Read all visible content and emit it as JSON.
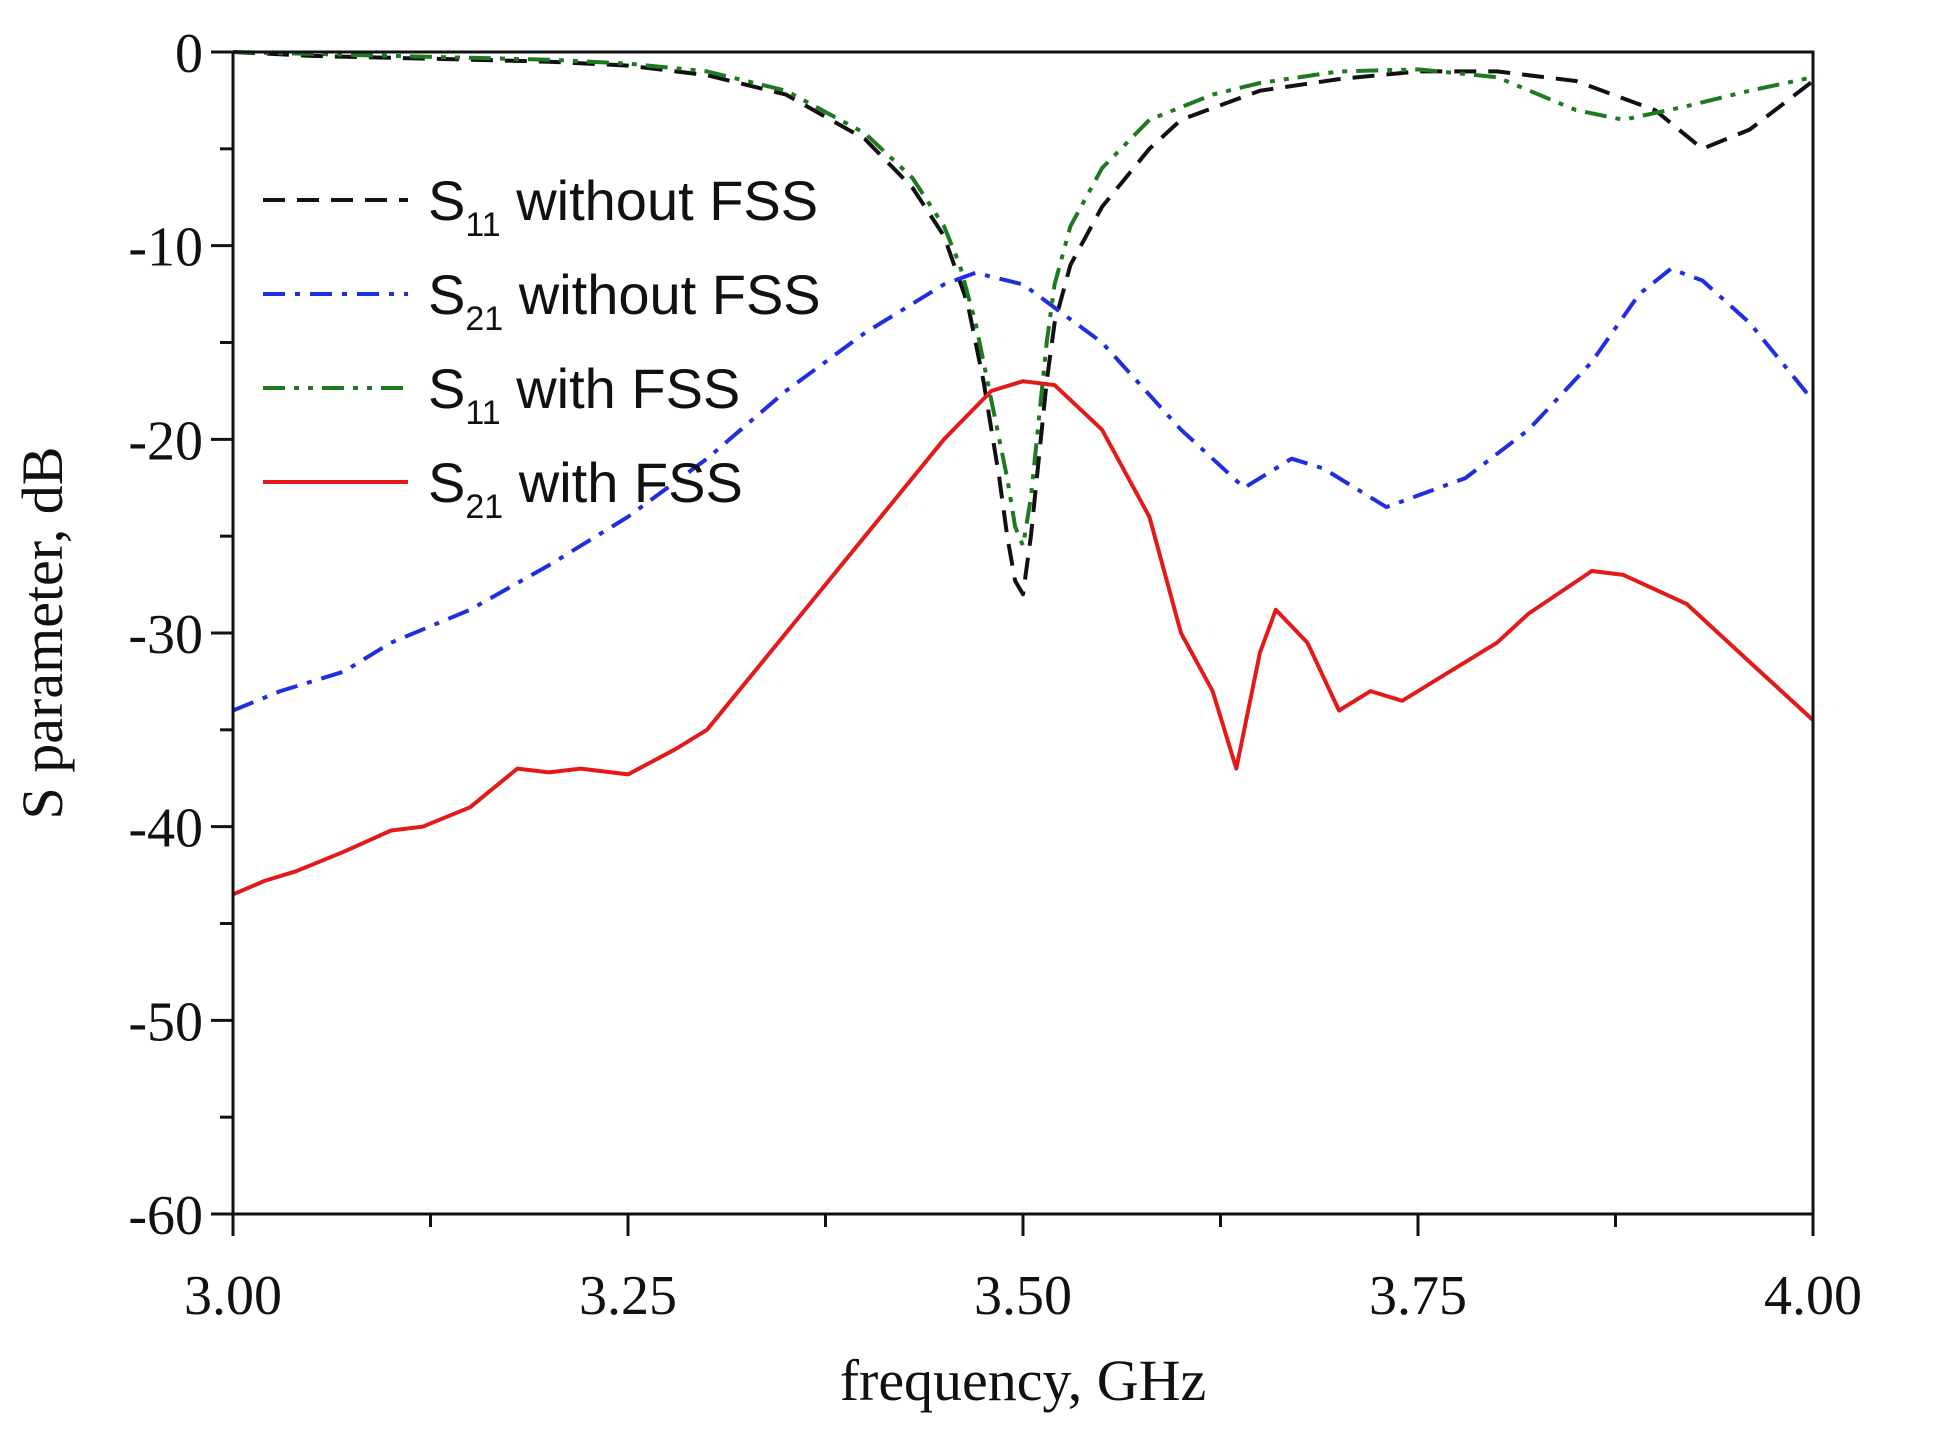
{
  "chart_data": {
    "type": "line",
    "title": "",
    "xlabel": "frequency, GHz",
    "ylabel": "S parameter, dB",
    "xlim": [
      3.0,
      4.0
    ],
    "ylim": [
      -60,
      0
    ],
    "x_ticks": [
      3.0,
      3.25,
      3.5,
      3.75,
      4.0
    ],
    "x_tick_labels": [
      "3.00",
      "3.25",
      "3.50",
      "3.75",
      "4.00"
    ],
    "y_ticks": [
      0,
      -10,
      -20,
      -30,
      -40,
      -50,
      -60
    ],
    "y_tick_labels": [
      "0",
      "-10",
      "-20",
      "-30",
      "-40",
      "-50",
      "-60"
    ],
    "grid": false,
    "legend_position": "upper-left",
    "series": [
      {
        "name": "S11 without FSS",
        "label_main": "S",
        "label_sub": "11",
        "label_rest": " without FSS",
        "color": "#111111",
        "style": "dash",
        "points": [
          [
            3.0,
            0
          ],
          [
            3.05,
            -0.2
          ],
          [
            3.1,
            -0.3
          ],
          [
            3.15,
            -0.4
          ],
          [
            3.2,
            -0.5
          ],
          [
            3.25,
            -0.7
          ],
          [
            3.3,
            -1.2
          ],
          [
            3.35,
            -2.2
          ],
          [
            3.4,
            -4.5
          ],
          [
            3.43,
            -7.0
          ],
          [
            3.45,
            -9.5
          ],
          [
            3.465,
            -13
          ],
          [
            3.475,
            -17
          ],
          [
            3.485,
            -22
          ],
          [
            3.49,
            -25
          ],
          [
            3.495,
            -27.3
          ],
          [
            3.5,
            -28
          ],
          [
            3.505,
            -25
          ],
          [
            3.51,
            -21
          ],
          [
            3.515,
            -17
          ],
          [
            3.52,
            -14
          ],
          [
            3.53,
            -11
          ],
          [
            3.55,
            -8
          ],
          [
            3.58,
            -5
          ],
          [
            3.6,
            -3.5
          ],
          [
            3.65,
            -2
          ],
          [
            3.7,
            -1.4
          ],
          [
            3.75,
            -1.0
          ],
          [
            3.8,
            -1.0
          ],
          [
            3.85,
            -1.5
          ],
          [
            3.9,
            -3.0
          ],
          [
            3.93,
            -5.0
          ],
          [
            3.96,
            -4.0
          ],
          [
            4.0,
            -1.5
          ]
        ]
      },
      {
        "name": "S21 without FSS",
        "label_main": "S",
        "label_sub": "21",
        "label_rest": " without FSS",
        "color": "#1f2fe0",
        "style": "dashdot",
        "points": [
          [
            3.0,
            -34
          ],
          [
            3.03,
            -33
          ],
          [
            3.07,
            -32
          ],
          [
            3.1,
            -30.5
          ],
          [
            3.15,
            -28.8
          ],
          [
            3.2,
            -26.5
          ],
          [
            3.25,
            -24
          ],
          [
            3.3,
            -21
          ],
          [
            3.35,
            -17.5
          ],
          [
            3.4,
            -14.5
          ],
          [
            3.45,
            -12
          ],
          [
            3.47,
            -11.4
          ],
          [
            3.5,
            -12
          ],
          [
            3.55,
            -15
          ],
          [
            3.6,
            -19.5
          ],
          [
            3.64,
            -22.5
          ],
          [
            3.67,
            -21
          ],
          [
            3.69,
            -21.5
          ],
          [
            3.73,
            -23.5
          ],
          [
            3.78,
            -22
          ],
          [
            3.82,
            -19.5
          ],
          [
            3.86,
            -16
          ],
          [
            3.89,
            -12.5
          ],
          [
            3.91,
            -11.2
          ],
          [
            3.93,
            -11.8
          ],
          [
            3.96,
            -14
          ],
          [
            4.0,
            -18
          ]
        ]
      },
      {
        "name": "S11 with FSS",
        "label_main": "S",
        "label_sub": "11",
        "label_rest": " with FSS",
        "color": "#1e7a1e",
        "style": "dashdotdot",
        "points": [
          [
            3.0,
            0
          ],
          [
            3.05,
            -0.1
          ],
          [
            3.1,
            -0.2
          ],
          [
            3.15,
            -0.3
          ],
          [
            3.2,
            -0.4
          ],
          [
            3.25,
            -0.6
          ],
          [
            3.3,
            -1.0
          ],
          [
            3.35,
            -2.0
          ],
          [
            3.4,
            -4.2
          ],
          [
            3.43,
            -6.5
          ],
          [
            3.45,
            -9.0
          ],
          [
            3.46,
            -11
          ],
          [
            3.47,
            -14
          ],
          [
            3.48,
            -18
          ],
          [
            3.49,
            -22
          ],
          [
            3.495,
            -24.5
          ],
          [
            3.5,
            -25.5
          ],
          [
            3.505,
            -23
          ],
          [
            3.51,
            -19
          ],
          [
            3.515,
            -15
          ],
          [
            3.52,
            -12
          ],
          [
            3.53,
            -9
          ],
          [
            3.55,
            -6
          ],
          [
            3.58,
            -3.5
          ],
          [
            3.62,
            -2.2
          ],
          [
            3.65,
            -1.6
          ],
          [
            3.7,
            -1.0
          ],
          [
            3.75,
            -0.9
          ],
          [
            3.8,
            -1.3
          ],
          [
            3.85,
            -3.0
          ],
          [
            3.88,
            -3.5
          ],
          [
            3.92,
            -2.8
          ],
          [
            3.96,
            -2.0
          ],
          [
            4.0,
            -1.3
          ]
        ]
      },
      {
        "name": "S21 with FSS",
        "label_main": "S",
        "label_sub": "21",
        "label_rest": " with FSS",
        "color": "#e31a1a",
        "style": "solid",
        "points": [
          [
            3.0,
            -43.5
          ],
          [
            3.02,
            -42.8
          ],
          [
            3.04,
            -42.3
          ],
          [
            3.07,
            -41.3
          ],
          [
            3.1,
            -40.2
          ],
          [
            3.12,
            -40
          ],
          [
            3.15,
            -39
          ],
          [
            3.18,
            -37
          ],
          [
            3.2,
            -37.2
          ],
          [
            3.22,
            -37
          ],
          [
            3.25,
            -37.3
          ],
          [
            3.28,
            -36
          ],
          [
            3.3,
            -35
          ],
          [
            3.35,
            -30
          ],
          [
            3.4,
            -25
          ],
          [
            3.45,
            -20
          ],
          [
            3.48,
            -17.5
          ],
          [
            3.5,
            -17
          ],
          [
            3.52,
            -17.2
          ],
          [
            3.55,
            -19.5
          ],
          [
            3.58,
            -24
          ],
          [
            3.6,
            -30
          ],
          [
            3.62,
            -33
          ],
          [
            3.635,
            -37
          ],
          [
            3.65,
            -31
          ],
          [
            3.66,
            -28.8
          ],
          [
            3.68,
            -30.5
          ],
          [
            3.7,
            -34
          ],
          [
            3.72,
            -33
          ],
          [
            3.74,
            -33.5
          ],
          [
            3.77,
            -32
          ],
          [
            3.8,
            -30.5
          ],
          [
            3.82,
            -29
          ],
          [
            3.86,
            -26.8
          ],
          [
            3.88,
            -27
          ],
          [
            3.92,
            -28.5
          ],
          [
            3.96,
            -31.5
          ],
          [
            4.0,
            -34.5
          ]
        ]
      }
    ]
  }
}
